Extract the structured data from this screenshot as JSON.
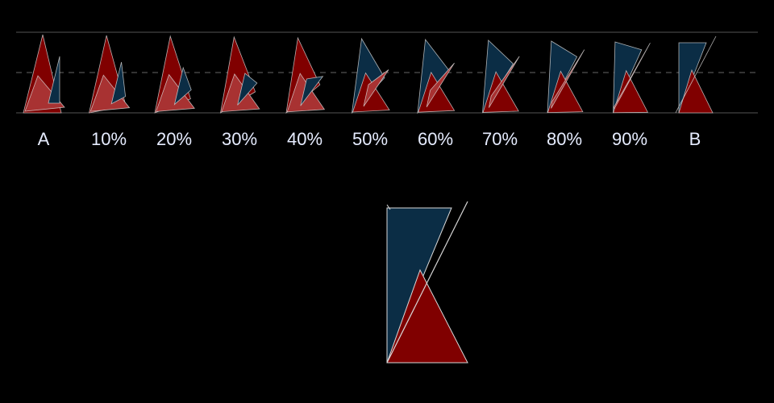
{
  "labels": [
    "A",
    "10%",
    "20%",
    "30%",
    "40%",
    "50%",
    "60%",
    "70%",
    "80%",
    "90%",
    "B"
  ],
  "colors": {
    "background": "#000000",
    "dark_red": "#800000",
    "light_red": "#a83232",
    "navy": "#0b2d45",
    "outline": "#d8d8d8",
    "guide_line": "#555555",
    "label_text": "#e6ecff"
  }
}
